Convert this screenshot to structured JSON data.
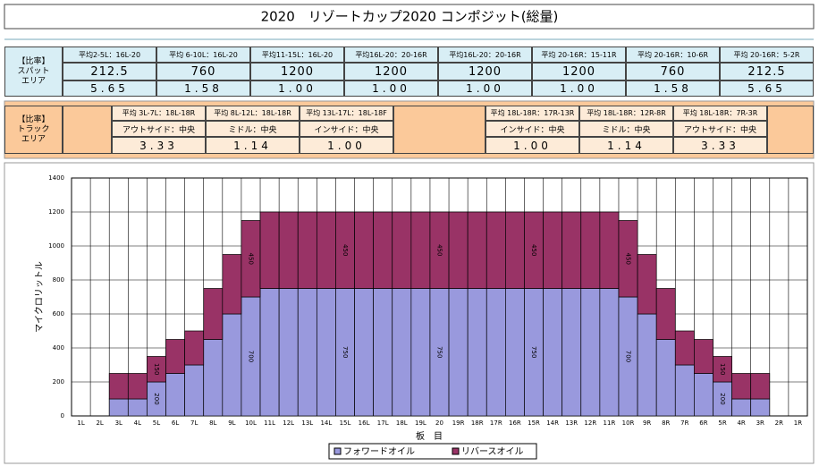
{
  "title": "2020　リゾートカップ2020 コンポジット(総量)",
  "spot_table": {
    "label": [
      "【比率】",
      "スパット",
      "エリア"
    ],
    "headers": [
      "平均2-5L：16L-20",
      "平均 6-10L：16L-20",
      "平均11-15L：16L-20",
      "平均16L-20：20-16R",
      "平均16L-20：20-16R",
      "平均 20-16R：15-11R",
      "平均 20-16R：10-6R",
      "平均 20-16R：5-2R"
    ],
    "values": [
      212.5,
      760,
      1200,
      1200,
      1200,
      1200,
      760,
      212.5
    ],
    "ratios": [
      "5.65",
      "1.58",
      "1.00",
      "1.00",
      "1.00",
      "1.00",
      "1.58",
      "5.65"
    ]
  },
  "track_table": {
    "label": [
      "【比率】",
      "トラック",
      "エリア"
    ],
    "headers": [
      "平均 3L-7L：18L-18R",
      "平均 8L-12L：18L-18R",
      "平均 13L-17L：18L-18F",
      "平均 18L-18R：17R-13R",
      "平均 18L-18R：12R-8R",
      "平均 18L-18R：7R-3R"
    ],
    "names": [
      "アウトサイド：中央",
      "ミドル：中央",
      "インサイド：中央",
      "インサイド：中央",
      "ミドル：中央",
      "アウトサイド：中央"
    ],
    "ratios": [
      "3.33",
      "1.14",
      "1.00",
      "1.00",
      "1.14",
      "3.33"
    ]
  },
  "chart_data": {
    "type": "stacked_bar",
    "x_label": "板　目",
    "y_label": "マイクロリットル",
    "categories": [
      "1L",
      "2L",
      "3L",
      "4L",
      "5L",
      "6L",
      "7L",
      "8L",
      "9L",
      "10L",
      "11L",
      "12L",
      "13L",
      "14L",
      "15L",
      "16L",
      "17L",
      "18L",
      "19L",
      "20",
      "19R",
      "18R",
      "17R",
      "16R",
      "15R",
      "14R",
      "13R",
      "12R",
      "11R",
      "10R",
      "9R",
      "8R",
      "7R",
      "6R",
      "5R",
      "4R",
      "3R",
      "2R",
      "1R"
    ],
    "series": [
      {
        "name": "フォワードオイル",
        "color": "#9999dd",
        "values": [
          0,
          0,
          100,
          100,
          200,
          250,
          300,
          450,
          600,
          700,
          750,
          750,
          750,
          750,
          750,
          750,
          750,
          750,
          750,
          750,
          750,
          750,
          750,
          750,
          750,
          750,
          750,
          750,
          750,
          700,
          600,
          450,
          300,
          250,
          200,
          100,
          100,
          0,
          0
        ],
        "value_labels": [
          null,
          null,
          null,
          null,
          "200",
          null,
          null,
          null,
          null,
          "700",
          null,
          null,
          null,
          null,
          "750",
          null,
          null,
          null,
          null,
          "750",
          null,
          null,
          null,
          null,
          "750",
          null,
          null,
          null,
          null,
          "700",
          null,
          null,
          null,
          null,
          "200",
          null,
          null,
          null,
          null
        ]
      },
      {
        "name": "リバースオイル",
        "color": "#993366",
        "values": [
          0,
          0,
          150,
          150,
          150,
          200,
          200,
          300,
          350,
          450,
          450,
          450,
          450,
          450,
          450,
          450,
          450,
          450,
          450,
          450,
          450,
          450,
          450,
          450,
          450,
          450,
          450,
          450,
          450,
          450,
          350,
          300,
          200,
          200,
          150,
          150,
          150,
          0,
          0
        ],
        "value_labels": [
          null,
          null,
          null,
          null,
          "150",
          null,
          null,
          null,
          null,
          "450",
          null,
          null,
          null,
          null,
          "450",
          null,
          null,
          null,
          null,
          "450",
          null,
          null,
          null,
          null,
          "450",
          null,
          null,
          null,
          null,
          "450",
          null,
          null,
          null,
          null,
          "150",
          null,
          null,
          null,
          null
        ]
      }
    ],
    "ylim": [
      0,
      1400
    ],
    "yticks": [
      0,
      200,
      400,
      600,
      800,
      1000,
      1200,
      1400
    ],
    "grid": true
  }
}
